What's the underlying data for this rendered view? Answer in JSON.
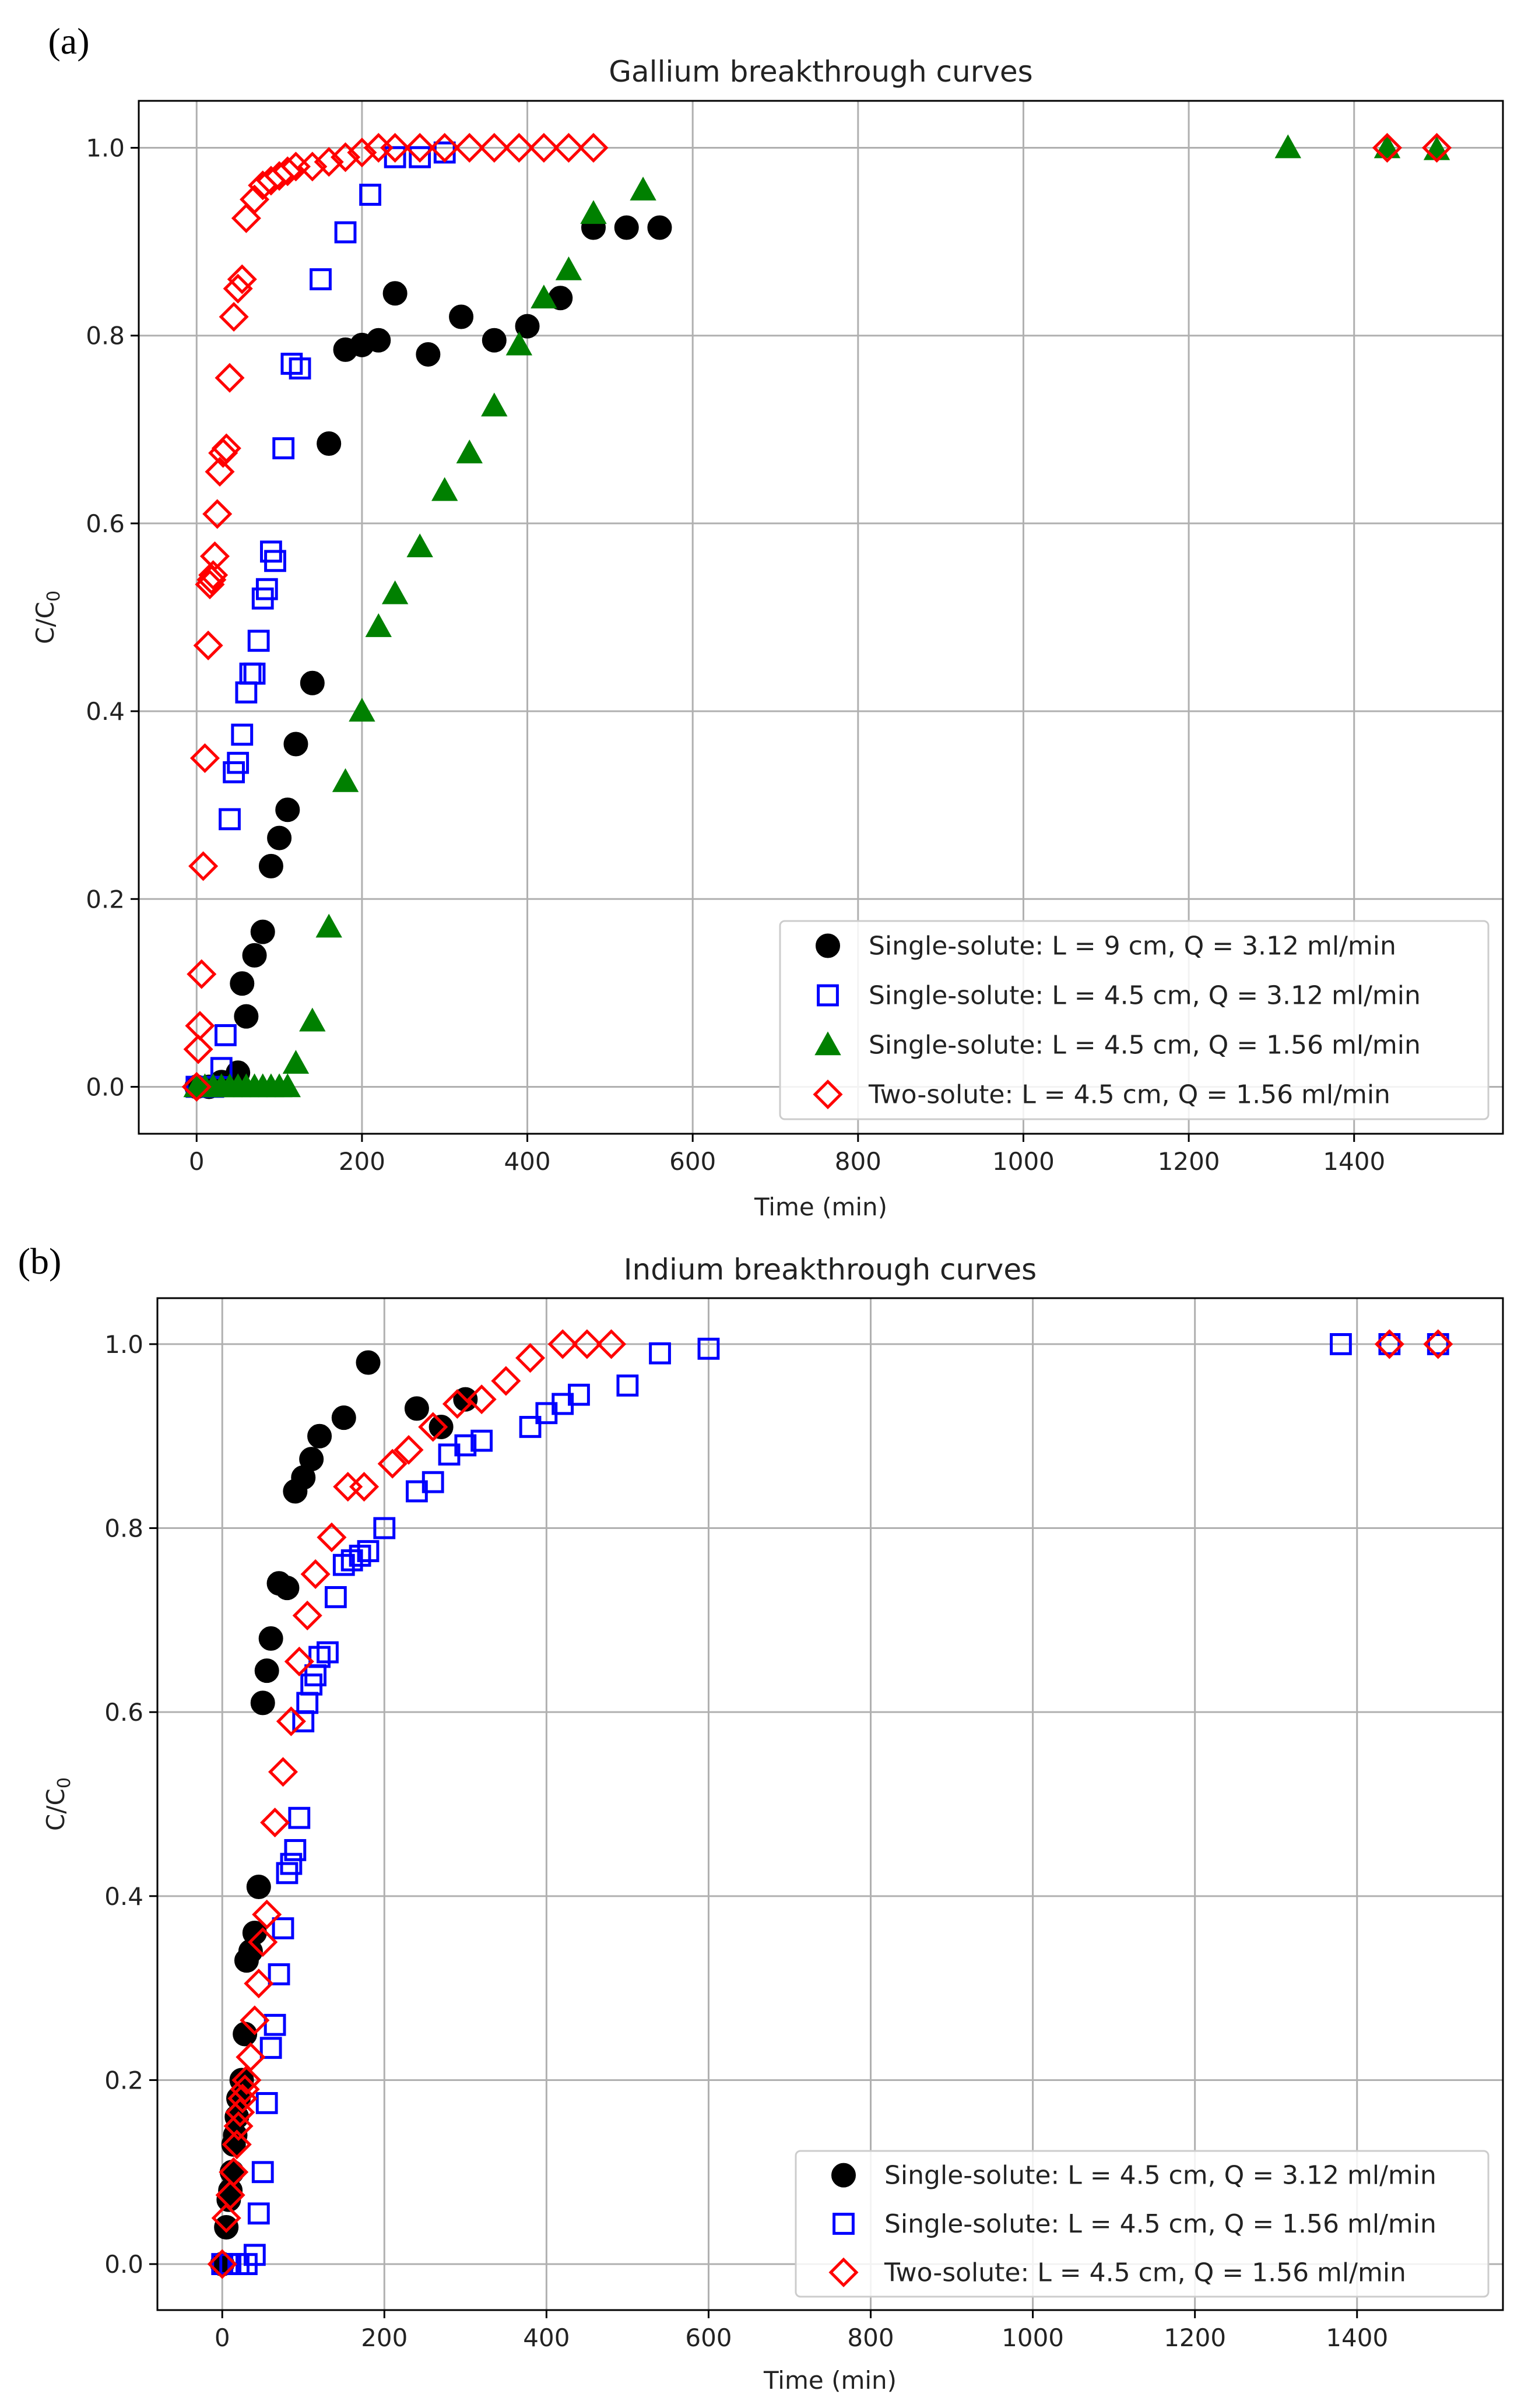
{
  "chart_data": [
    {
      "type": "scatter",
      "panel_label": "(a)",
      "title": "Gallium breakthrough curves",
      "xlabel": "Time (min)",
      "ylabel": "C/C",
      "ylabel_sub": "0",
      "xlim": [
        -70,
        1580
      ],
      "ylim": [
        -0.05,
        1.05
      ],
      "xticks": [
        0,
        200,
        400,
        600,
        800,
        1000,
        1200,
        1400
      ],
      "yticks": [
        0.0,
        0.2,
        0.4,
        0.6,
        0.8,
        1.0
      ],
      "xtick_labels": [
        "0",
        "200",
        "400",
        "600",
        "800",
        "1000",
        "1200",
        "1400"
      ],
      "ytick_labels": [
        "0.0",
        "0.2",
        "0.4",
        "0.6",
        "0.8",
        "1.0"
      ],
      "grid": true,
      "legend_position": "lower-right",
      "series": [
        {
          "name": "Single-solute: L = 9 cm, Q = 3.12 ml/min",
          "marker": "circle",
          "color": "#000000",
          "filled": true,
          "points": [
            [
              0,
              0
            ],
            [
              15,
              0
            ],
            [
              30,
              0.005
            ],
            [
              40,
              0.005
            ],
            [
              50,
              0.015
            ],
            [
              55,
              0.11
            ],
            [
              60,
              0.075
            ],
            [
              70,
              0.14
            ],
            [
              80,
              0.165
            ],
            [
              90,
              0.235
            ],
            [
              100,
              0.265
            ],
            [
              110,
              0.295
            ],
            [
              120,
              0.365
            ],
            [
              140,
              0.43
            ],
            [
              160,
              0.685
            ],
            [
              180,
              0.785
            ],
            [
              200,
              0.79
            ],
            [
              220,
              0.795
            ],
            [
              240,
              0.845
            ],
            [
              280,
              0.78
            ],
            [
              320,
              0.82
            ],
            [
              360,
              0.795
            ],
            [
              400,
              0.81
            ],
            [
              440,
              0.84
            ],
            [
              480,
              0.915
            ],
            [
              520,
              0.915
            ],
            [
              560,
              0.915
            ]
          ]
        },
        {
          "name": "Single-solute: L = 4.5 cm, Q = 3.12 ml/min",
          "marker": "square",
          "color": "#0000ff",
          "filled": false,
          "points": [
            [
              0,
              0
            ],
            [
              20,
              0
            ],
            [
              30,
              0.02
            ],
            [
              35,
              0.055
            ],
            [
              40,
              0.285
            ],
            [
              45,
              0.335
            ],
            [
              50,
              0.345
            ],
            [
              55,
              0.375
            ],
            [
              60,
              0.42
            ],
            [
              65,
              0.44
            ],
            [
              70,
              0.44
            ],
            [
              75,
              0.475
            ],
            [
              80,
              0.52
            ],
            [
              85,
              0.53
            ],
            [
              90,
              0.57
            ],
            [
              95,
              0.56
            ],
            [
              105,
              0.68
            ],
            [
              115,
              0.77
            ],
            [
              125,
              0.765
            ],
            [
              150,
              0.86
            ],
            [
              180,
              0.91
            ],
            [
              210,
              0.95
            ],
            [
              240,
              0.99
            ],
            [
              270,
              0.99
            ],
            [
              300,
              0.995
            ]
          ]
        },
        {
          "name": "Single-solute: L = 4.5 cm, Q = 1.56 ml/min",
          "marker": "triangle",
          "color": "#008000",
          "filled": true,
          "points": [
            [
              0,
              0
            ],
            [
              10,
              0
            ],
            [
              20,
              0
            ],
            [
              30,
              0
            ],
            [
              40,
              0
            ],
            [
              50,
              0
            ],
            [
              60,
              0
            ],
            [
              70,
              0
            ],
            [
              80,
              0
            ],
            [
              90,
              0
            ],
            [
              100,
              0
            ],
            [
              110,
              0
            ],
            [
              120,
              0.025
            ],
            [
              140,
              0.07
            ],
            [
              160,
              0.17
            ],
            [
              180,
              0.325
            ],
            [
              200,
              0.4
            ],
            [
              220,
              0.49
            ],
            [
              240,
              0.525
            ],
            [
              270,
              0.575
            ],
            [
              300,
              0.635
            ],
            [
              330,
              0.675
            ],
            [
              360,
              0.725
            ],
            [
              390,
              0.79
            ],
            [
              420,
              0.84
            ],
            [
              450,
              0.87
            ],
            [
              480,
              0.93
            ],
            [
              540,
              0.955
            ],
            [
              1320,
              1.0
            ],
            [
              1440,
              1.0
            ],
            [
              1500,
              0.998
            ]
          ]
        },
        {
          "name": "Two-solute: L = 4.5 cm, Q = 1.56 ml/min",
          "marker": "diamond",
          "color": "#ff0000",
          "filled": false,
          "points": [
            [
              0,
              0
            ],
            [
              2,
              0.04
            ],
            [
              4,
              0.065
            ],
            [
              6,
              0.12
            ],
            [
              8,
              0.235
            ],
            [
              10,
              0.35
            ],
            [
              14,
              0.47
            ],
            [
              16,
              0.535
            ],
            [
              18,
              0.54
            ],
            [
              20,
              0.545
            ],
            [
              22,
              0.565
            ],
            [
              25,
              0.61
            ],
            [
              28,
              0.655
            ],
            [
              32,
              0.675
            ],
            [
              36,
              0.68
            ],
            [
              40,
              0.755
            ],
            [
              45,
              0.82
            ],
            [
              50,
              0.85
            ],
            [
              55,
              0.86
            ],
            [
              60,
              0.925
            ],
            [
              70,
              0.945
            ],
            [
              80,
              0.96
            ],
            [
              90,
              0.965
            ],
            [
              100,
              0.97
            ],
            [
              110,
              0.975
            ],
            [
              120,
              0.98
            ],
            [
              140,
              0.98
            ],
            [
              160,
              0.985
            ],
            [
              180,
              0.99
            ],
            [
              200,
              0.995
            ],
            [
              220,
              1.0
            ],
            [
              240,
              1.0
            ],
            [
              270,
              1.0
            ],
            [
              300,
              1.0
            ],
            [
              330,
              1.0
            ],
            [
              360,
              1.0
            ],
            [
              390,
              1.0
            ],
            [
              420,
              1.0
            ],
            [
              450,
              1.0
            ],
            [
              480,
              1.0
            ],
            [
              1440,
              1.0
            ],
            [
              1500,
              1.0
            ]
          ]
        }
      ]
    },
    {
      "type": "scatter",
      "panel_label": "(b)",
      "title": "Indium breakthrough curves",
      "xlabel": "Time (min)",
      "ylabel": "C/C",
      "ylabel_sub": "0",
      "xlim": [
        -80,
        1580
      ],
      "ylim": [
        -0.05,
        1.05
      ],
      "xticks": [
        0,
        200,
        400,
        600,
        800,
        1000,
        1200,
        1400
      ],
      "yticks": [
        0.0,
        0.2,
        0.4,
        0.6,
        0.8,
        1.0
      ],
      "xtick_labels": [
        "0",
        "200",
        "400",
        "600",
        "800",
        "1000",
        "1200",
        "1400"
      ],
      "ytick_labels": [
        "0.0",
        "0.2",
        "0.4",
        "0.6",
        "0.8",
        "1.0"
      ],
      "grid": true,
      "legend_position": "lower-right",
      "series": [
        {
          "name": "Single-solute: L = 4.5 cm, Q = 3.12 ml/min",
          "marker": "circle",
          "color": "#000000",
          "filled": true,
          "points": [
            [
              0,
              0
            ],
            [
              5,
              0.04
            ],
            [
              8,
              0.07
            ],
            [
              10,
              0.08
            ],
            [
              12,
              0.1
            ],
            [
              14,
              0.13
            ],
            [
              16,
              0.14
            ],
            [
              18,
              0.16
            ],
            [
              20,
              0.18
            ],
            [
              24,
              0.2
            ],
            [
              28,
              0.25
            ],
            [
              30,
              0.33
            ],
            [
              35,
              0.34
            ],
            [
              40,
              0.36
            ],
            [
              45,
              0.41
            ],
            [
              50,
              0.61
            ],
            [
              55,
              0.645
            ],
            [
              60,
              0.68
            ],
            [
              70,
              0.74
            ],
            [
              80,
              0.735
            ],
            [
              90,
              0.84
            ],
            [
              100,
              0.855
            ],
            [
              110,
              0.875
            ],
            [
              120,
              0.9
            ],
            [
              150,
              0.92
            ],
            [
              180,
              0.98
            ],
            [
              240,
              0.93
            ],
            [
              270,
              0.91
            ],
            [
              300,
              0.94
            ]
          ]
        },
        {
          "name": "Single-solute: L = 4.5 cm, Q = 1.56 ml/min",
          "marker": "square",
          "color": "#0000ff",
          "filled": false,
          "points": [
            [
              0,
              0
            ],
            [
              10,
              0
            ],
            [
              20,
              0
            ],
            [
              30,
              0
            ],
            [
              40,
              0.01
            ],
            [
              45,
              0.055
            ],
            [
              50,
              0.1
            ],
            [
              55,
              0.175
            ],
            [
              60,
              0.235
            ],
            [
              65,
              0.26
            ],
            [
              70,
              0.315
            ],
            [
              75,
              0.365
            ],
            [
              80,
              0.425
            ],
            [
              85,
              0.435
            ],
            [
              90,
              0.45
            ],
            [
              95,
              0.485
            ],
            [
              100,
              0.59
            ],
            [
              105,
              0.61
            ],
            [
              110,
              0.63
            ],
            [
              115,
              0.64
            ],
            [
              120,
              0.66
            ],
            [
              130,
              0.665
            ],
            [
              140,
              0.725
            ],
            [
              150,
              0.76
            ],
            [
              160,
              0.765
            ],
            [
              170,
              0.77
            ],
            [
              180,
              0.775
            ],
            [
              200,
              0.8
            ],
            [
              240,
              0.84
            ],
            [
              260,
              0.85
            ],
            [
              280,
              0.88
            ],
            [
              300,
              0.89
            ],
            [
              320,
              0.895
            ],
            [
              380,
              0.91
            ],
            [
              400,
              0.925
            ],
            [
              420,
              0.935
            ],
            [
              440,
              0.945
            ],
            [
              500,
              0.955
            ],
            [
              540,
              0.99
            ],
            [
              600,
              0.995
            ],
            [
              1380,
              1.0
            ],
            [
              1440,
              1.0
            ],
            [
              1500,
              1.0
            ]
          ]
        },
        {
          "name": "Two-solute: L = 4.5 cm, Q = 1.56 ml/min",
          "marker": "diamond",
          "color": "#ff0000",
          "filled": false,
          "points": [
            [
              0,
              0
            ],
            [
              5,
              0.05
            ],
            [
              10,
              0.075
            ],
            [
              14,
              0.1
            ],
            [
              18,
              0.13
            ],
            [
              20,
              0.15
            ],
            [
              22,
              0.165
            ],
            [
              25,
              0.18
            ],
            [
              28,
              0.19
            ],
            [
              30,
              0.2
            ],
            [
              35,
              0.225
            ],
            [
              40,
              0.265
            ],
            [
              45,
              0.305
            ],
            [
              50,
              0.35
            ],
            [
              55,
              0.38
            ],
            [
              65,
              0.48
            ],
            [
              75,
              0.535
            ],
            [
              85,
              0.59
            ],
            [
              95,
              0.655
            ],
            [
              105,
              0.705
            ],
            [
              115,
              0.75
            ],
            [
              135,
              0.79
            ],
            [
              155,
              0.845
            ],
            [
              175,
              0.845
            ],
            [
              210,
              0.87
            ],
            [
              230,
              0.885
            ],
            [
              260,
              0.91
            ],
            [
              290,
              0.935
            ],
            [
              320,
              0.94
            ],
            [
              350,
              0.96
            ],
            [
              380,
              0.985
            ],
            [
              420,
              1.0
            ],
            [
              450,
              1.0
            ],
            [
              480,
              1.0
            ],
            [
              1440,
              1.0
            ],
            [
              1500,
              1.0
            ]
          ]
        }
      ]
    }
  ]
}
